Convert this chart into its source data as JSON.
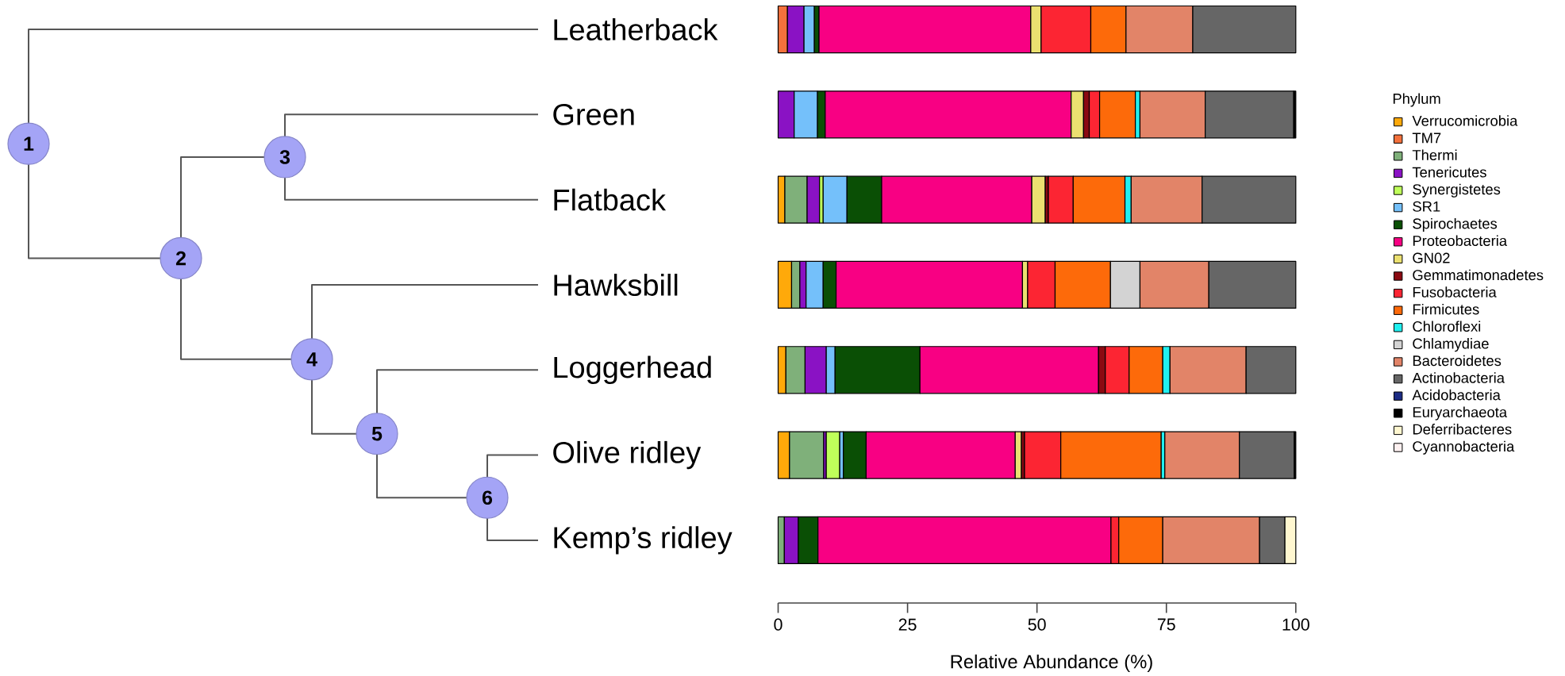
{
  "chart_data": {
    "type": "bar",
    "orientation": "horizontal",
    "stacked": true,
    "categories": [
      "Leatherback",
      "Green",
      "Flatback",
      "Hawksbill",
      "Loggerhead",
      "Olive ridley",
      "Kemp’s ridley"
    ],
    "xlabel": "Relative Abundance (%)",
    "legend_title": "Phylum",
    "legend": "right",
    "xlim": [
      0,
      100
    ],
    "xticks": [
      0,
      25,
      50,
      75,
      100
    ],
    "annotations": [
      "1",
      "2",
      "3",
      "4",
      "5",
      "6"
    ],
    "series": [
      {
        "name": "Verrucomicrobia",
        "color": "#ffa90a",
        "values": [
          null,
          null,
          1.3,
          2.6,
          1.5,
          2.2,
          null
        ]
      },
      {
        "name": "TM7",
        "color": "#f4713c",
        "values": [
          1.8,
          null,
          null,
          null,
          null,
          null,
          null
        ]
      },
      {
        "name": "Thermi",
        "color": "#7fb07a",
        "values": [
          null,
          null,
          4.3,
          1.6,
          3.7,
          6.6,
          1.2
        ]
      },
      {
        "name": "Tenericutes",
        "color": "#8a12c4",
        "values": [
          3.2,
          3.1,
          2.4,
          1.2,
          4.1,
          0.5,
          2.7
        ]
      },
      {
        "name": "Synergistetes",
        "color": "#bfff5a",
        "values": [
          null,
          null,
          0.7,
          null,
          null,
          2.6,
          null
        ]
      },
      {
        "name": "SR1",
        "color": "#74c0fa",
        "values": [
          2.0,
          4.5,
          4.6,
          3.3,
          1.7,
          0.7,
          null
        ]
      },
      {
        "name": "Spirochaetes",
        "color": "#0a4f05",
        "values": [
          0.9,
          1.5,
          6.7,
          2.5,
          16.4,
          4.4,
          3.8
        ]
      },
      {
        "name": "Proteobacteria",
        "color": "#f80083",
        "values": [
          40.9,
          47.5,
          29.0,
          36.0,
          34.5,
          28.8,
          56.6
        ]
      },
      {
        "name": "GN02",
        "color": "#ebe070",
        "values": [
          2.0,
          2.4,
          2.6,
          1.0,
          null,
          1.2,
          null
        ]
      },
      {
        "name": "Gemmatimonadetes",
        "color": "#8b0a12",
        "values": [
          null,
          1.1,
          0.6,
          null,
          1.3,
          0.6,
          null
        ]
      },
      {
        "name": "Fusobacteria",
        "color": "#fc2533",
        "values": [
          9.6,
          2.0,
          4.8,
          5.3,
          4.6,
          7.0,
          1.5
        ]
      },
      {
        "name": "Firmicutes",
        "color": "#fd6a0a",
        "values": [
          6.8,
          6.9,
          10.0,
          10.7,
          6.5,
          19.4,
          8.5
        ]
      },
      {
        "name": "Chloroflexi",
        "color": "#20f0f0",
        "values": [
          null,
          0.9,
          1.2,
          null,
          1.4,
          0.7,
          null
        ]
      },
      {
        "name": "Chlamydiae",
        "color": "#d3d3d3",
        "values": [
          null,
          null,
          null,
          5.7,
          null,
          null,
          null
        ]
      },
      {
        "name": "Bacteroidetes",
        "color": "#e28468",
        "values": [
          12.9,
          12.6,
          13.7,
          13.3,
          14.7,
          14.4,
          18.7
        ]
      },
      {
        "name": "Actinobacteria",
        "color": "#666666",
        "values": [
          19.9,
          17.1,
          18.1,
          16.8,
          9.6,
          10.6,
          4.9
        ]
      },
      {
        "name": "Acidobacteria",
        "color": "#1c2c84",
        "values": [
          null,
          null,
          null,
          null,
          null,
          null,
          null
        ]
      },
      {
        "name": "Euryarchaeota",
        "color": "#000000",
        "values": [
          null,
          0.4,
          null,
          null,
          null,
          0.3,
          null
        ]
      },
      {
        "name": "Deferribacteres",
        "color": "#fff7d0",
        "values": [
          null,
          null,
          null,
          null,
          null,
          null,
          2.1
        ]
      },
      {
        "name": "Cyannobacteria",
        "color": "#fdf0f0",
        "values": [
          null,
          null,
          null,
          null,
          null,
          null,
          null
        ]
      }
    ]
  }
}
